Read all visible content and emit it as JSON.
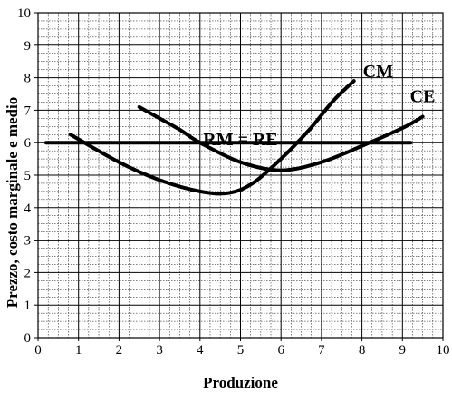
{
  "chart_data": {
    "type": "line",
    "xlabel": "Produzione",
    "ylabel": "Prezzo, costo marginale e medio",
    "xlim": [
      0,
      10
    ],
    "ylim": [
      0,
      10
    ],
    "x_ticks": [
      "0",
      "1",
      "2",
      "3",
      "4",
      "5",
      "6",
      "7",
      "8",
      "9",
      "10"
    ],
    "y_ticks": [
      "0",
      "1",
      "2",
      "3",
      "4",
      "5",
      "6",
      "7",
      "8",
      "9",
      "10"
    ],
    "grid": true,
    "series": [
      {
        "name": "CM",
        "x": [
          0.8,
          2,
          3,
          4,
          4.7,
          5.3,
          6,
          6.7,
          7.3,
          7.8
        ],
        "y": [
          6.25,
          5.4,
          4.85,
          4.5,
          4.45,
          4.75,
          5.5,
          6.4,
          7.3,
          7.9
        ]
      },
      {
        "name": "CE",
        "x": [
          2.5,
          3,
          3.5,
          4,
          5,
          6,
          7,
          8,
          9,
          9.5
        ],
        "y": [
          7.1,
          6.75,
          6.4,
          6.0,
          5.4,
          5.15,
          5.4,
          5.9,
          6.45,
          6.8
        ]
      },
      {
        "name": "RM = RE",
        "x": [
          0.2,
          9.2
        ],
        "y": [
          6,
          6
        ]
      }
    ]
  }
}
